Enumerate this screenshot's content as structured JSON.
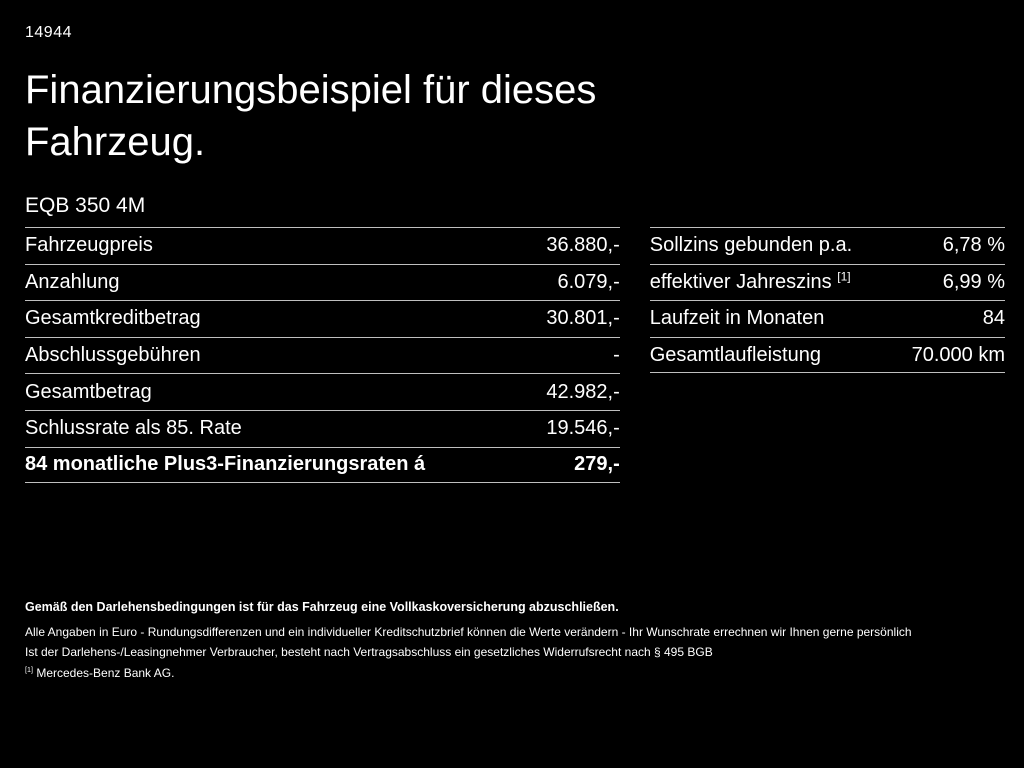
{
  "doc": {
    "id": "14944",
    "title": "Finanzierungsbeispiel für dieses Fahrzeug.",
    "model": "EQB 350 4M"
  },
  "left_table": {
    "rows": [
      {
        "label": "Fahrzeugpreis",
        "value": "36.880,-",
        "bold": false
      },
      {
        "label": "Anzahlung",
        "value": "6.079,-",
        "bold": false
      },
      {
        "label": "Gesamtkreditbetrag",
        "value": "30.801,-",
        "bold": false
      },
      {
        "label": "Abschlussgebühren",
        "value": "-",
        "bold": false
      },
      {
        "label": "Gesamtbetrag",
        "value": "42.982,-",
        "bold": false
      },
      {
        "label": "Schlussrate als 85. Rate",
        "value": "19.546,-",
        "bold": false
      },
      {
        "label": "84 monatliche Plus3-Finanzierungsraten á",
        "value": "279,-",
        "bold": true
      }
    ]
  },
  "right_table": {
    "rows": [
      {
        "label": "Sollzins gebunden p.a.",
        "value": "6,78 %",
        "bold": false
      },
      {
        "label": "effektiver Jahreszins ",
        "sup": "[1]",
        "value": "6,99 %",
        "bold": false
      },
      {
        "label": "Laufzeit in Monaten",
        "value": "84",
        "bold": false
      },
      {
        "label": "Gesamtlaufleistung",
        "value": "70.000 km",
        "bold": false
      }
    ]
  },
  "footnotes": {
    "lines": [
      {
        "text": "Gemäß den Darlehensbedingungen ist für das Fahrzeug eine Vollkaskoversicherung abzuschließen.",
        "bold": true
      },
      {
        "text": "Alle Angaben in Euro - Rundungsdifferenzen und ein individueller Kreditschutzbrief können die Werte verändern - Ihr Wunschrate errechnen wir Ihnen gerne persönlich",
        "bold": false
      },
      {
        "text": "Ist der Darlehens-/Leasingnehmer Verbraucher, besteht nach Vertragsabschluss ein gesetzliches Widerrufsrecht nach § 495 BGB",
        "bold": false
      },
      {
        "sup": "[1]",
        "text": " Mercedes-Benz Bank AG.",
        "bold": false
      }
    ]
  },
  "colors": {
    "background": "#000000",
    "text": "#ffffff",
    "divider": "#bfbfbf"
  }
}
